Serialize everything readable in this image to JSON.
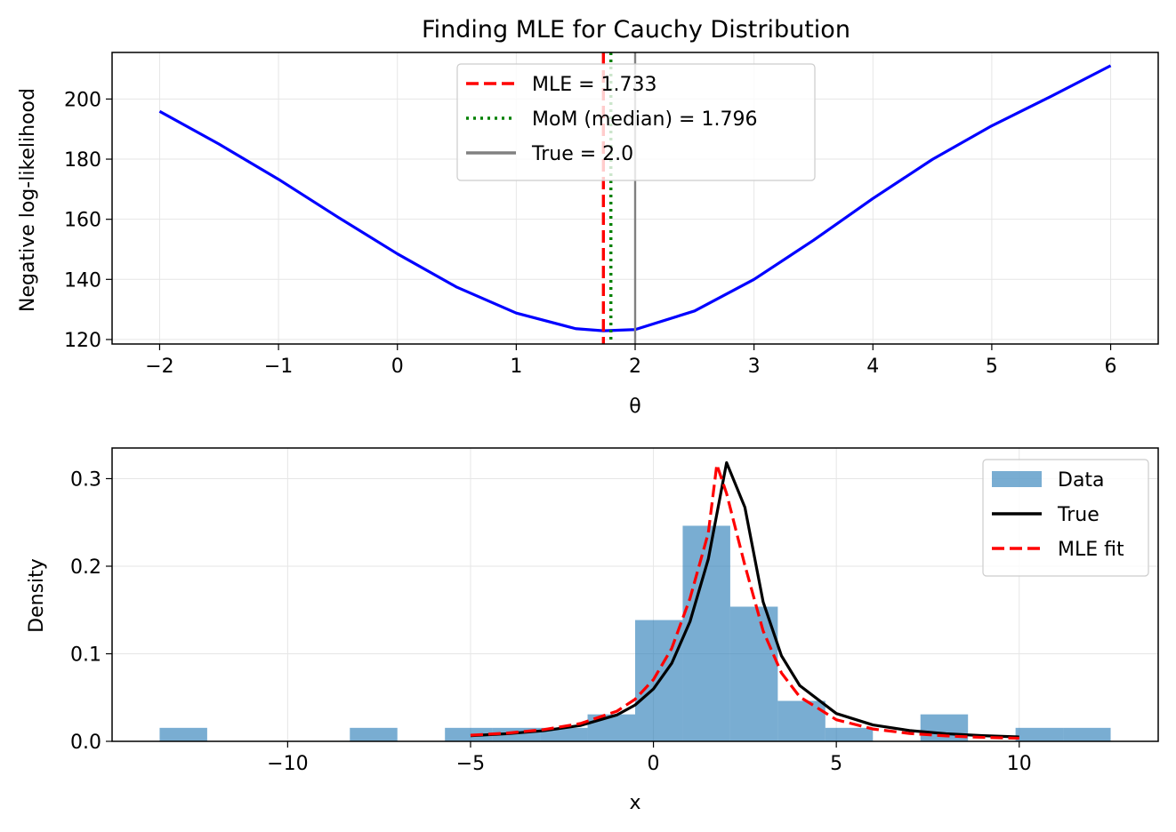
{
  "chart_data": [
    {
      "type": "line",
      "title": "Finding MLE for Cauchy Distribution",
      "xlabel": "θ",
      "ylabel": "Negative log-likelihood",
      "xlim": [
        -2.4,
        6.4
      ],
      "ylim": [
        118.5,
        215.5
      ],
      "x_ticks": [
        -2,
        -1,
        0,
        1,
        2,
        3,
        4,
        5,
        6
      ],
      "x_tick_labels": [
        "−2",
        "−1",
        "0",
        "1",
        "2",
        "3",
        "4",
        "5",
        "6"
      ],
      "y_ticks": [
        120,
        140,
        160,
        180,
        200
      ],
      "y_tick_labels": [
        "120",
        "140",
        "160",
        "180",
        "200"
      ],
      "grid": true,
      "legend_position": "top-center",
      "series": [
        {
          "color": "#0000ff",
          "x": [
            -2,
            -1.5,
            -1,
            -0.5,
            0,
            0.5,
            1,
            1.5,
            1.733,
            2,
            2.5,
            3,
            3.5,
            4,
            4.5,
            5,
            5.5,
            6
          ],
          "y": [
            195.9,
            185.0,
            173.3,
            160.7,
            148.5,
            137.4,
            128.8,
            123.6,
            122.9,
            123.3,
            129.5,
            140.0,
            153.0,
            166.9,
            179.9,
            191.1,
            200.9,
            211.1
          ]
        }
      ],
      "vlines": [
        {
          "name": "MLE = 1.733",
          "x": 1.733,
          "color": "#ff0000",
          "style": "dashed"
        },
        {
          "name": "MoM (median) = 1.796",
          "x": 1.796,
          "color": "#008000",
          "style": "dotted"
        },
        {
          "name": "True = 2.0",
          "x": 2.0,
          "color": "#808080",
          "style": "solid"
        }
      ]
    },
    {
      "type": "bar",
      "title": "",
      "xlabel": "x",
      "ylabel": "Density",
      "xlim": [
        -14.8,
        13.8
      ],
      "ylim": [
        0,
        0.335
      ],
      "x_ticks": [
        -10,
        -5,
        0,
        5,
        10
      ],
      "x_tick_labels": [
        "−10",
        "−5",
        "0",
        "5",
        "10"
      ],
      "y_ticks": [
        0.0,
        0.1,
        0.2,
        0.3
      ],
      "y_tick_labels": [
        "0.0",
        "0.1",
        "0.2",
        "0.3"
      ],
      "grid": true,
      "legend_position": "top-right",
      "histogram": {
        "name": "Data",
        "color": "#1f77b4",
        "alpha": 0.6,
        "bin_edges": [
          -13.5,
          -12.2,
          -10.9,
          -9.6,
          -8.3,
          -7.0,
          -5.7,
          -4.4,
          -3.1,
          -1.8,
          -0.5,
          0.8,
          2.1,
          3.4,
          4.7,
          6.0,
          7.3,
          8.6,
          9.9,
          11.2,
          12.5
        ],
        "densities": [
          0.0154,
          0,
          0,
          0,
          0.0154,
          0,
          0.0154,
          0.0154,
          0.0154,
          0.0308,
          0.1385,
          0.2462,
          0.1538,
          0.0462,
          0.0154,
          0,
          0.0308,
          0,
          0.0154,
          0.0154
        ]
      },
      "series": [
        {
          "name": "True",
          "color": "#000000",
          "style": "solid",
          "x": [
            -5,
            -4,
            -3,
            -2,
            -1,
            -0.5,
            0,
            0.5,
            1,
            1.5,
            2,
            2.5,
            3,
            3.5,
            4,
            5,
            6,
            7,
            8,
            9,
            10
          ],
          "y": [
            0.0065,
            0.0087,
            0.0121,
            0.0181,
            0.0301,
            0.0415,
            0.0598,
            0.0891,
            0.1368,
            0.2082,
            0.3183,
            0.2673,
            0.1591,
            0.0977,
            0.0637,
            0.0318,
            0.0187,
            0.0123,
            0.0087,
            0.0065,
            0.005
          ],
          "peak": 0.3183
        },
        {
          "name": "MLE fit",
          "color": "#ff0000",
          "style": "dashed",
          "x": [
            -5,
            -4,
            -3,
            -2,
            -1,
            -0.5,
            0,
            0.5,
            1,
            1.5,
            1.733,
            2,
            2.5,
            3,
            3.5,
            4,
            5,
            6,
            7,
            8,
            9,
            10
          ],
          "y": [
            0.007,
            0.0094,
            0.0134,
            0.0203,
            0.0344,
            0.0481,
            0.0705,
            0.1062,
            0.1633,
            0.238,
            0.316,
            0.283,
            0.201,
            0.126,
            0.0781,
            0.0508,
            0.0247,
            0.0141,
            0.009,
            0.0062,
            0.0045,
            0.0035
          ],
          "peak": 0.316
        }
      ]
    }
  ]
}
